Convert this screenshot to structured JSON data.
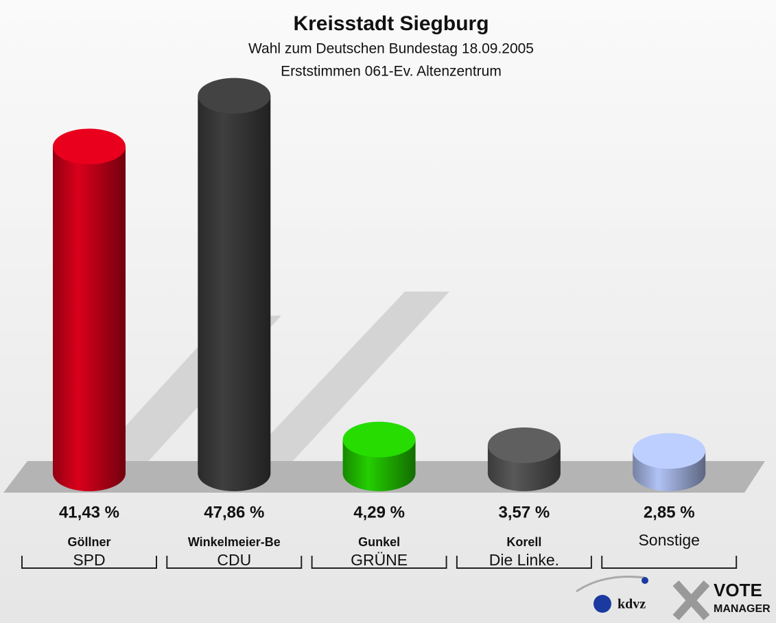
{
  "chart_data": {
    "type": "bar",
    "title": "Kreisstadt Siegburg",
    "subtitle": [
      "Wahl zum Deutschen Bundestag 18.09.2005",
      "Erststimmen 061-Ev. Altenzentrum"
    ],
    "categories": [
      "Göllner",
      "Winkelmeier-Be",
      "Gunkel",
      "Korell",
      "Sonstige"
    ],
    "parties": [
      "SPD",
      "CDU",
      "GRÜNE",
      "Die Linke.",
      null
    ],
    "values": [
      41.43,
      47.86,
      4.29,
      3.57,
      2.85
    ],
    "value_labels": [
      "41,43 %",
      "47,86 %",
      "4,29 %",
      "3,57 %",
      "2,85 %"
    ],
    "colors": [
      "#d0001a",
      "#3c3c3c",
      "#22c400",
      "#555555",
      "#a9b9e9"
    ],
    "logos": [
      "kdvz",
      "VOTE",
      "MANAGER"
    ]
  }
}
